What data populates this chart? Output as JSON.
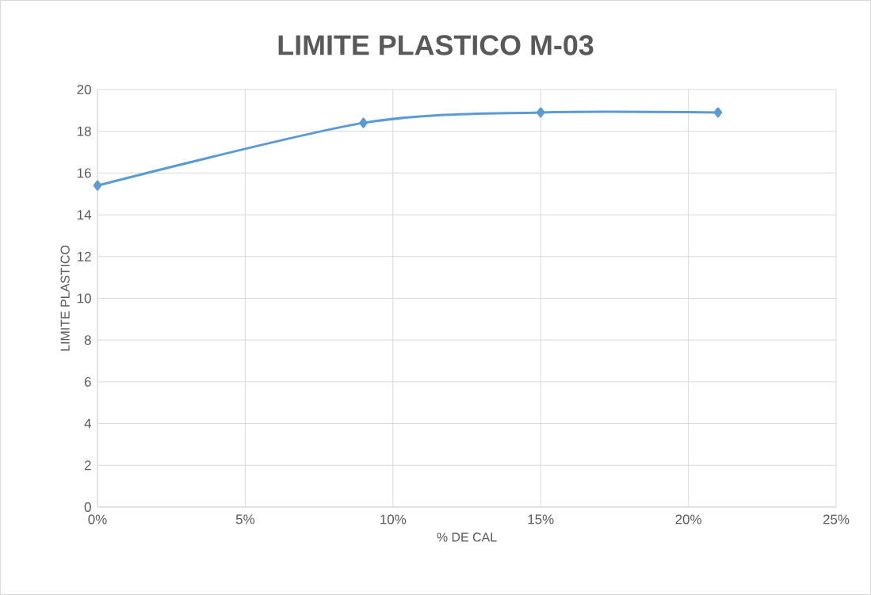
{
  "chart_data": {
    "type": "line",
    "title": "LIMITE PLASTICO M-03",
    "xlabel": "% DE CAL",
    "ylabel": "LIMITE PLASTICO",
    "x": [
      0,
      9,
      15,
      21
    ],
    "series": [
      {
        "color": "#5b9bd5",
        "values": [
          15.4,
          18.4,
          18.9,
          18.9
        ]
      }
    ],
    "xlim": [
      0,
      25
    ],
    "xticks": [
      {
        "value": 0,
        "label": "0%"
      },
      {
        "value": 5,
        "label": "5%"
      },
      {
        "value": 10,
        "label": "10%"
      },
      {
        "value": 15,
        "label": "15%"
      },
      {
        "value": 20,
        "label": "20%"
      },
      {
        "value": 25,
        "label": "25%"
      }
    ],
    "ylim": [
      0,
      20
    ],
    "yticks": [
      0,
      2,
      4,
      6,
      8,
      10,
      12,
      14,
      16,
      18,
      20
    ],
    "grid": true,
    "marker": "diamond",
    "line_style": "solid"
  }
}
